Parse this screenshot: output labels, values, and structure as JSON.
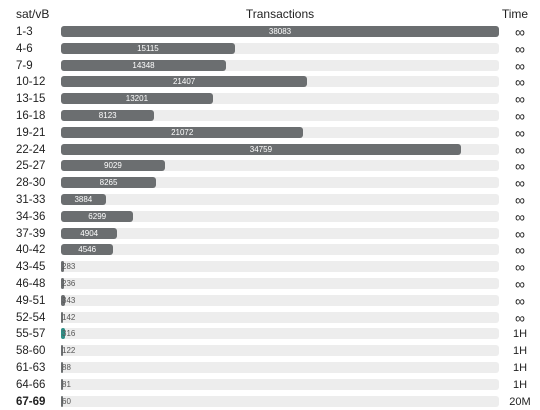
{
  "header": {
    "fee_label": "sat/vB",
    "transactions_label": "Transactions",
    "time_label": "Time"
  },
  "accent": {
    "bar": "#6b6e70",
    "track": "#ededed",
    "highlight": "#2f8f86"
  },
  "max_count": 38083,
  "rows": [
    {
      "fee": "1-3",
      "count": 38083,
      "time": "∞"
    },
    {
      "fee": "4-6",
      "count": 15115,
      "time": "∞"
    },
    {
      "fee": "7-9",
      "count": 14348,
      "time": "∞"
    },
    {
      "fee": "10-12",
      "count": 21407,
      "time": "∞"
    },
    {
      "fee": "13-15",
      "count": 13201,
      "time": "∞"
    },
    {
      "fee": "16-18",
      "count": 8123,
      "time": "∞"
    },
    {
      "fee": "19-21",
      "count": 21072,
      "time": "∞"
    },
    {
      "fee": "22-24",
      "count": 34759,
      "time": "∞"
    },
    {
      "fee": "25-27",
      "count": 9029,
      "time": "∞"
    },
    {
      "fee": "28-30",
      "count": 8265,
      "time": "∞"
    },
    {
      "fee": "31-33",
      "count": 3884,
      "time": "∞"
    },
    {
      "fee": "34-36",
      "count": 6299,
      "time": "∞"
    },
    {
      "fee": "37-39",
      "count": 4904,
      "time": "∞"
    },
    {
      "fee": "40-42",
      "count": 4546,
      "time": "∞"
    },
    {
      "fee": "43-45",
      "count": 283,
      "time": "∞"
    },
    {
      "fee": "46-48",
      "count": 236,
      "time": "∞"
    },
    {
      "fee": "49-51",
      "count": 343,
      "time": "∞"
    },
    {
      "fee": "52-54",
      "count": 142,
      "time": "∞"
    },
    {
      "fee": "55-57",
      "count": 316,
      "time": "1H",
      "highlight": true
    },
    {
      "fee": "58-60",
      "count": 122,
      "time": "1H"
    },
    {
      "fee": "61-63",
      "count": 88,
      "time": "1H"
    },
    {
      "fee": "64-66",
      "count": 81,
      "time": "1H"
    },
    {
      "fee": "67-69",
      "count": 60,
      "time": "20M",
      "bold": true
    }
  ]
}
